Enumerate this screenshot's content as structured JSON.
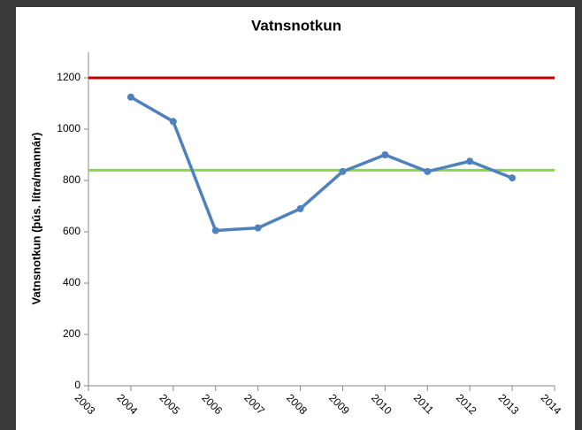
{
  "chart_data": {
    "type": "line",
    "title": "Vatnsnotkun",
    "y_label": "Vatnsnotkun (þús. lítra/mannár)",
    "x": [
      2004,
      2005,
      2006,
      2007,
      2008,
      2009,
      2010,
      2011,
      2012,
      2013
    ],
    "series": [
      {
        "color": "#4f81bd",
        "values": [
          1125,
          1030,
          605,
          615,
          690,
          835,
          900,
          835,
          875,
          810
        ]
      }
    ],
    "reference_lines": [
      {
        "value": 1200,
        "color": "#c00000"
      },
      {
        "value": 840,
        "color": "#92d050"
      }
    ],
    "xlim": [
      2003,
      2014
    ],
    "xticks": [
      2003,
      2004,
      2005,
      2006,
      2007,
      2008,
      2009,
      2010,
      2011,
      2012,
      2013,
      2014
    ],
    "ylim": [
      0,
      1300
    ],
    "yticks": [
      0,
      200,
      400,
      600,
      800,
      1000,
      1200
    ],
    "grid": false
  }
}
